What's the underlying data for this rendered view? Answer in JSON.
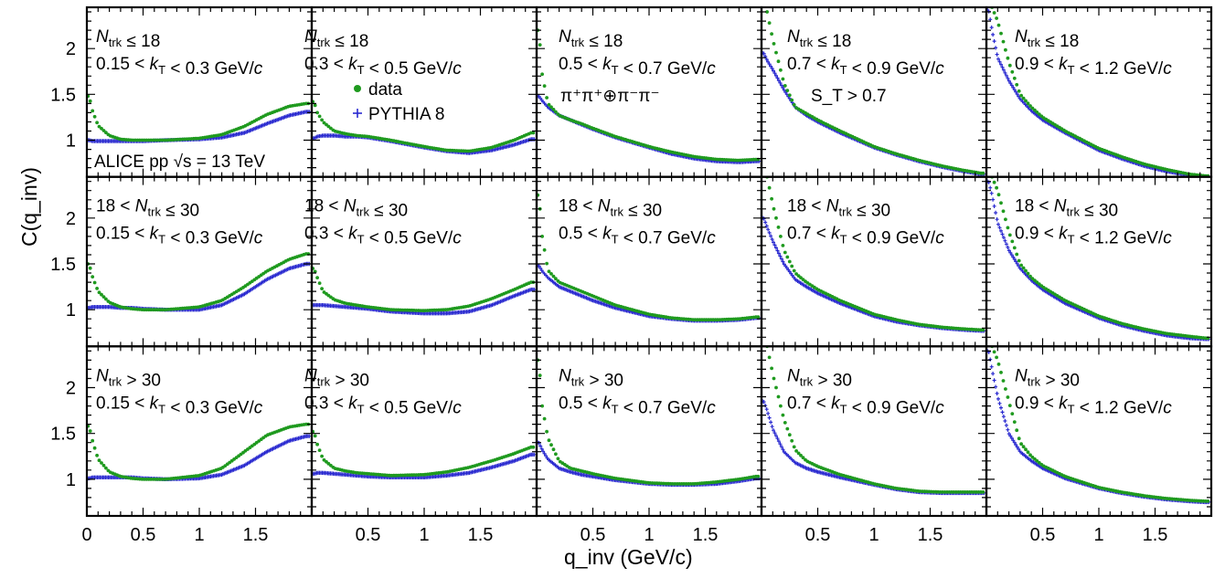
{
  "figure": {
    "experiment_label": "ALICE pp √s = 13 TeV",
    "channel_label": "π⁺π⁺⊕π⁻π⁻",
    "selection_label": "S_T > 0.7",
    "legend": [
      {
        "label": "data",
        "marker": "dot",
        "color": "#1f9a1f"
      },
      {
        "label": "PYTHIA 8",
        "marker": "cross",
        "color": "#2a2ad0"
      }
    ],
    "xlabel": "q_inv (GeV/c)",
    "ylabel": "C(q_inv)"
  },
  "chart_data": {
    "type": "scatter",
    "layout": {
      "rows": 3,
      "cols": 5
    },
    "xlim": [
      0,
      2.0
    ],
    "ylim": [
      0.6,
      2.45
    ],
    "x_ticks": [
      0.5,
      1,
      1.5
    ],
    "x_ticks_first_column": [
      0,
      0.5,
      1,
      1.5
    ],
    "y_ticks": [
      1,
      1.5,
      2
    ],
    "row_labels": [
      "N_trk ≤ 18",
      "18 < N_trk ≤ 30",
      "N_trk > 30"
    ],
    "col_labels": [
      "0.15 < k_T < 0.3 GeV/c",
      "0.3 < k_T < 0.5 GeV/c",
      "0.5 < k_T < 0.7 GeV/c",
      "0.7 < k_T < 0.9 GeV/c",
      "0.9 < k_T < 1.2 GeV/c"
    ],
    "x": [
      0.02,
      0.05,
      0.1,
      0.2,
      0.3,
      0.4,
      0.5,
      0.7,
      1.0,
      1.2,
      1.4,
      1.6,
      1.8,
      1.95
    ],
    "panels": [
      {
        "row": 0,
        "col": 0,
        "series": [
          {
            "name": "data",
            "values": [
              1.48,
              1.32,
              1.16,
              1.05,
              1.01,
              1.0,
              1.0,
              1.0,
              1.02,
              1.06,
              1.15,
              1.28,
              1.37,
              1.4
            ]
          },
          {
            "name": "PYTHIA 8",
            "values": [
              1.0,
              0.99,
              0.99,
              0.99,
              0.99,
              0.99,
              0.99,
              1.0,
              1.01,
              1.03,
              1.08,
              1.18,
              1.27,
              1.31
            ]
          }
        ]
      },
      {
        "row": 0,
        "col": 1,
        "series": [
          {
            "name": "data",
            "values": [
              1.42,
              1.3,
              1.2,
              1.1,
              1.07,
              1.05,
              1.04,
              1.0,
              0.93,
              0.89,
              0.88,
              0.92,
              1.0,
              1.08
            ]
          },
          {
            "name": "PYTHIA 8",
            "values": [
              1.02,
              1.04,
              1.05,
              1.05,
              1.04,
              1.04,
              1.03,
              0.99,
              0.92,
              0.88,
              0.86,
              0.89,
              0.95,
              1.01
            ]
          }
        ]
      },
      {
        "row": 0,
        "col": 2,
        "series": [
          {
            "name": "data",
            "values": [
              2.2,
              1.72,
              1.4,
              1.27,
              1.22,
              1.18,
              1.13,
              1.04,
              0.93,
              0.87,
              0.82,
              0.79,
              0.78,
              0.79
            ]
          },
          {
            "name": "PYTHIA 8",
            "values": [
              1.48,
              1.43,
              1.36,
              1.27,
              1.22,
              1.17,
              1.12,
              1.03,
              0.92,
              0.85,
              0.8,
              0.77,
              0.76,
              0.77
            ]
          }
        ]
      },
      {
        "row": 0,
        "col": 3,
        "series": [
          {
            "name": "data",
            "values": [
              2.5,
              2.4,
              2.1,
              1.62,
              1.36,
              1.29,
              1.22,
              1.1,
              0.93,
              0.85,
              0.78,
              0.72,
              0.67,
              0.64
            ]
          },
          {
            "name": "PYTHIA 8",
            "values": [
              1.95,
              1.87,
              1.77,
              1.55,
              1.36,
              1.27,
              1.2,
              1.08,
              0.92,
              0.84,
              0.77,
              0.71,
              0.66,
              0.63
            ]
          }
        ]
      },
      {
        "row": 0,
        "col": 4,
        "series": [
          {
            "name": "data",
            "values": [
              2.5,
              2.45,
              2.3,
              1.85,
              1.5,
              1.36,
              1.25,
              1.1,
              0.91,
              0.82,
              0.74,
              0.68,
              0.63,
              0.61
            ]
          },
          {
            "name": "PYTHIA 8",
            "values": [
              2.42,
              2.2,
              1.9,
              1.65,
              1.45,
              1.32,
              1.22,
              1.08,
              0.89,
              0.8,
              0.72,
              0.66,
              0.62,
              0.6
            ]
          }
        ]
      },
      {
        "row": 1,
        "col": 0,
        "series": [
          {
            "name": "data",
            "values": [
              1.5,
              1.36,
              1.2,
              1.08,
              1.03,
              1.01,
              1.0,
              1.0,
              1.03,
              1.1,
              1.25,
              1.42,
              1.55,
              1.61
            ]
          },
          {
            "name": "PYTHIA 8",
            "values": [
              1.02,
              1.03,
              1.03,
              1.03,
              1.02,
              1.02,
              1.01,
              1.0,
              1.0,
              1.05,
              1.17,
              1.33,
              1.45,
              1.5
            ]
          }
        ]
      },
      {
        "row": 1,
        "col": 1,
        "series": [
          {
            "name": "data",
            "values": [
              1.45,
              1.35,
              1.2,
              1.11,
              1.07,
              1.05,
              1.03,
              1.0,
              0.99,
              1.0,
              1.04,
              1.12,
              1.22,
              1.3
            ]
          },
          {
            "name": "PYTHIA 8",
            "values": [
              1.05,
              1.05,
              1.05,
              1.04,
              1.03,
              1.02,
              1.01,
              0.98,
              0.96,
              0.96,
              0.98,
              1.05,
              1.15,
              1.22
            ]
          }
        ]
      },
      {
        "row": 1,
        "col": 2,
        "series": [
          {
            "name": "data",
            "values": [
              2.25,
              1.8,
              1.43,
              1.3,
              1.25,
              1.2,
              1.15,
              1.05,
              0.95,
              0.91,
              0.89,
              0.89,
              0.9,
              0.92
            ]
          },
          {
            "name": "PYTHIA 8",
            "values": [
              1.48,
              1.42,
              1.35,
              1.25,
              1.2,
              1.15,
              1.1,
              1.02,
              0.93,
              0.9,
              0.88,
              0.88,
              0.89,
              0.91
            ]
          }
        ]
      },
      {
        "row": 1,
        "col": 3,
        "series": [
          {
            "name": "data",
            "values": [
              2.5,
              2.45,
              2.15,
              1.65,
              1.4,
              1.3,
              1.22,
              1.1,
              0.95,
              0.89,
              0.84,
              0.81,
              0.79,
              0.78
            ]
          },
          {
            "name": "PYTHIA 8",
            "values": [
              2.0,
              1.9,
              1.75,
              1.5,
              1.33,
              1.25,
              1.18,
              1.07,
              0.93,
              0.87,
              0.83,
              0.8,
              0.78,
              0.77
            ]
          }
        ]
      },
      {
        "row": 1,
        "col": 4,
        "series": [
          {
            "name": "data",
            "values": [
              2.5,
              2.45,
              2.3,
              1.85,
              1.5,
              1.35,
              1.25,
              1.1,
              0.93,
              0.85,
              0.79,
              0.74,
              0.71,
              0.69
            ]
          },
          {
            "name": "PYTHIA 8",
            "values": [
              2.4,
              2.25,
              1.95,
              1.65,
              1.45,
              1.32,
              1.22,
              1.07,
              0.91,
              0.83,
              0.77,
              0.72,
              0.69,
              0.68
            ]
          }
        ]
      },
      {
        "row": 2,
        "col": 0,
        "series": [
          {
            "name": "data",
            "values": [
              1.58,
              1.42,
              1.22,
              1.08,
              1.03,
              1.01,
              1.0,
              1.0,
              1.04,
              1.12,
              1.3,
              1.48,
              1.57,
              1.6
            ]
          },
          {
            "name": "PYTHIA 8",
            "values": [
              1.01,
              1.02,
              1.02,
              1.02,
              1.02,
              1.02,
              1.01,
              1.0,
              1.01,
              1.05,
              1.15,
              1.3,
              1.42,
              1.47
            ]
          }
        ]
      },
      {
        "row": 2,
        "col": 1,
        "series": [
          {
            "name": "data",
            "values": [
              1.52,
              1.38,
              1.22,
              1.12,
              1.09,
              1.07,
              1.06,
              1.04,
              1.05,
              1.08,
              1.13,
              1.2,
              1.28,
              1.35
            ]
          },
          {
            "name": "PYTHIA 8",
            "values": [
              1.06,
              1.07,
              1.07,
              1.06,
              1.05,
              1.04,
              1.03,
              1.02,
              1.02,
              1.04,
              1.07,
              1.13,
              1.2,
              1.27
            ]
          }
        ]
      },
      {
        "row": 2,
        "col": 2,
        "series": [
          {
            "name": "data",
            "values": [
              2.3,
              1.8,
              1.45,
              1.2,
              1.12,
              1.09,
              1.06,
              1.01,
              0.96,
              0.95,
              0.95,
              0.97,
              1.0,
              1.03
            ]
          },
          {
            "name": "PYTHIA 8",
            "values": [
              1.4,
              1.32,
              1.22,
              1.12,
              1.08,
              1.05,
              1.03,
              0.99,
              0.95,
              0.94,
              0.94,
              0.95,
              0.98,
              1.01
            ]
          }
        ]
      },
      {
        "row": 2,
        "col": 3,
        "series": [
          {
            "name": "data",
            "values": [
              2.5,
              2.45,
              2.15,
              1.65,
              1.32,
              1.2,
              1.14,
              1.05,
              0.95,
              0.9,
              0.87,
              0.86,
              0.86,
              0.86
            ]
          },
          {
            "name": "PYTHIA 8",
            "values": [
              1.85,
              1.75,
              1.55,
              1.3,
              1.18,
              1.12,
              1.08,
              1.02,
              0.94,
              0.89,
              0.86,
              0.85,
              0.85,
              0.85
            ]
          }
        ]
      },
      {
        "row": 2,
        "col": 4,
        "series": [
          {
            "name": "data",
            "values": [
              2.5,
              2.45,
              2.3,
              1.85,
              1.4,
              1.25,
              1.15,
              1.03,
              0.91,
              0.86,
              0.82,
              0.79,
              0.77,
              0.76
            ]
          },
          {
            "name": "PYTHIA 8",
            "values": [
              2.4,
              2.2,
              1.9,
              1.5,
              1.3,
              1.2,
              1.12,
              1.01,
              0.9,
              0.85,
              0.81,
              0.78,
              0.76,
              0.75
            ]
          }
        ]
      }
    ]
  }
}
